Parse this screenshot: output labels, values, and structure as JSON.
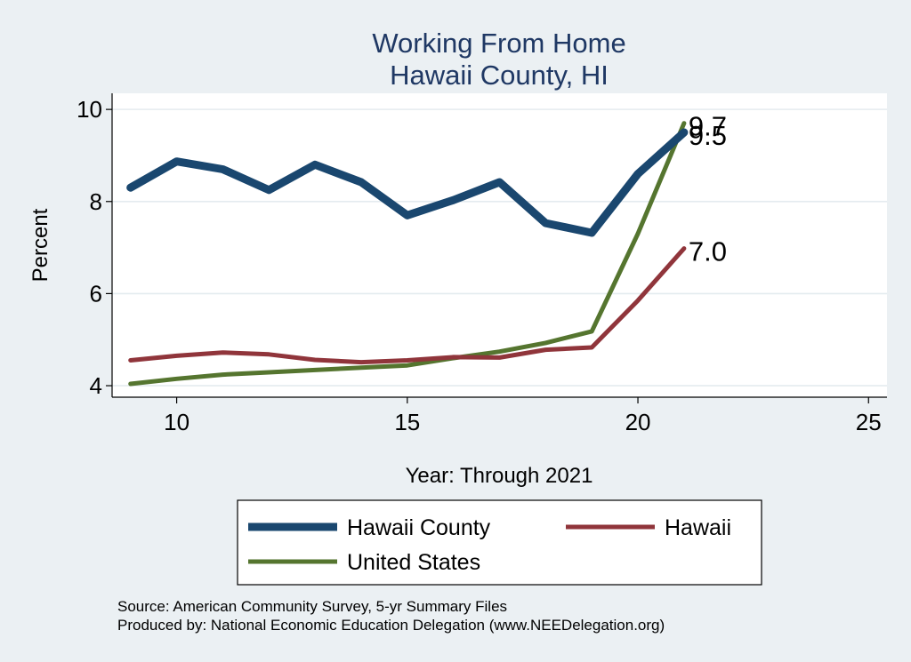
{
  "chart_data": {
    "type": "line",
    "title": [
      "Working From Home",
      "Hawaii County, HI"
    ],
    "xlabel": "Year: Through 2021",
    "ylabel": "Percent",
    "xlim": [
      8.6,
      25.4
    ],
    "ylim": [
      3.75,
      10.35
    ],
    "xticks": [
      10,
      15,
      20,
      25
    ],
    "yticks": [
      4,
      6,
      8,
      10
    ],
    "grid": true,
    "legend_position": "bottom",
    "x": [
      9,
      10,
      11,
      12,
      13,
      14,
      15,
      16,
      17,
      18,
      19,
      20,
      21
    ],
    "series": [
      {
        "name": "Hawaii County",
        "color": "#1a476f",
        "width": 9,
        "values": [
          8.3,
          8.87,
          8.7,
          8.25,
          8.8,
          8.42,
          7.7,
          8.03,
          8.42,
          7.53,
          7.32,
          8.6,
          9.5
        ],
        "end_label": "9.5"
      },
      {
        "name": "Hawaii",
        "color": "#90353b",
        "width": 5,
        "values": [
          4.55,
          4.65,
          4.72,
          4.68,
          4.56,
          4.51,
          4.55,
          4.62,
          4.61,
          4.78,
          4.83,
          5.85,
          6.98
        ],
        "end_label": "7.0"
      },
      {
        "name": "United States",
        "color": "#55752f",
        "width": 5,
        "values": [
          4.04,
          4.15,
          4.24,
          4.29,
          4.34,
          4.39,
          4.44,
          4.6,
          4.74,
          4.93,
          5.18,
          7.3,
          9.7
        ],
        "end_label": "9.7"
      }
    ],
    "notes": [
      "Source: American Community Survey, 5-yr Summary Files",
      "Produced by: National Economic Education Delegation (www.NEEDelegation.org)"
    ]
  }
}
